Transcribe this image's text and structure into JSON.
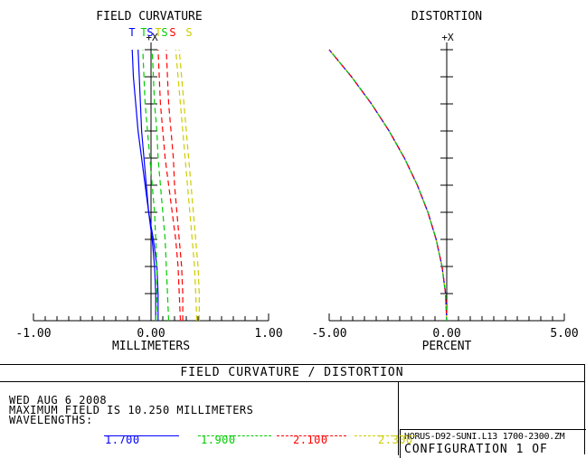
{
  "colors": {
    "blue": "#0000ff",
    "green": "#00cc00",
    "red": "#ff0000",
    "yellow": "#cccc00",
    "black": "#000000"
  },
  "chart_data": [
    {
      "type": "line",
      "title": "FIELD CURVATURE",
      "xlabel": "MILLIMETERS",
      "xlim": [
        -1.0,
        1.0
      ],
      "xticks": [
        "-1.00",
        "0.00",
        "1.00"
      ],
      "ylim": [
        0,
        1
      ],
      "y_axis_label": "+X",
      "legend": [
        "T",
        "T",
        "S",
        "T",
        "S",
        "S",
        "S"
      ],
      "y": [
        0,
        0.1,
        0.2,
        0.3,
        0.4,
        0.5,
        0.6,
        0.7,
        0.8,
        0.9,
        1.0
      ],
      "series": [
        {
          "name": "T",
          "color": "blue",
          "dash": "solid",
          "x": [
            0.04,
            0.04,
            0.03,
            0.01,
            -0.02,
            -0.05,
            -0.08,
            -0.11,
            -0.13,
            -0.15,
            -0.16
          ]
        },
        {
          "name": "S",
          "color": "blue",
          "dash": "solid",
          "x": [
            0.06,
            0.06,
            0.05,
            0.02,
            -0.02,
            -0.04,
            -0.06,
            -0.08,
            -0.09,
            -0.1,
            -0.11
          ]
        },
        {
          "name": "T",
          "color": "green",
          "dash": "dashed",
          "x": [
            0.04,
            0.05,
            0.05,
            0.04,
            0.03,
            0.01,
            -0.01,
            -0.03,
            -0.05,
            -0.06,
            -0.07
          ]
        },
        {
          "name": "S",
          "color": "green",
          "dash": "dashed",
          "x": [
            0.15,
            0.14,
            0.13,
            0.12,
            0.1,
            0.08,
            0.06,
            0.05,
            0.03,
            0.02,
            0.01
          ]
        },
        {
          "name": "T",
          "color": "red",
          "dash": "dashed",
          "x": [
            0.25,
            0.24,
            0.23,
            0.21,
            0.18,
            0.15,
            0.12,
            0.1,
            0.08,
            0.07,
            0.06
          ]
        },
        {
          "name": "S",
          "color": "red",
          "dash": "dashed",
          "x": [
            0.27,
            0.27,
            0.26,
            0.24,
            0.22,
            0.2,
            0.19,
            0.17,
            0.15,
            0.14,
            0.13
          ]
        },
        {
          "name": "T",
          "color": "yellow",
          "dash": "dashed",
          "x": [
            0.39,
            0.38,
            0.37,
            0.35,
            0.33,
            0.31,
            0.29,
            0.27,
            0.25,
            0.23,
            0.21
          ]
        },
        {
          "name": "S",
          "color": "yellow",
          "dash": "dashed",
          "x": [
            0.41,
            0.41,
            0.4,
            0.38,
            0.36,
            0.34,
            0.32,
            0.3,
            0.28,
            0.26,
            0.24
          ]
        }
      ]
    },
    {
      "type": "line",
      "title": "DISTORTION",
      "xlabel": "PERCENT",
      "xlim": [
        -5.0,
        5.0
      ],
      "xticks": [
        "-5.00",
        "0.00",
        "5.00"
      ],
      "ylim": [
        0,
        1
      ],
      "y_axis_label": "+X",
      "y": [
        0,
        0.1,
        0.2,
        0.3,
        0.4,
        0.5,
        0.6,
        0.7,
        0.8,
        0.9,
        1.0
      ],
      "series": [
        {
          "color": "multi",
          "x": [
            0.0,
            -0.05,
            -0.2,
            -0.45,
            -0.8,
            -1.25,
            -1.8,
            -2.45,
            -3.2,
            -4.05,
            -5.0
          ]
        }
      ]
    }
  ],
  "footer": {
    "title": "FIELD CURVATURE / DISTORTION",
    "date": "WED AUG 6 2008",
    "max_field": "MAXIMUM FIELD IS 10.250 MILLIMETERS",
    "wavelengths_label": "WAVELENGTHS:",
    "wavelengths": [
      {
        "value": "1.700",
        "color": "blue"
      },
      {
        "value": "1.900",
        "color": "green"
      },
      {
        "value": "2.100",
        "color": "red"
      },
      {
        "value": "2.300",
        "color": "yellow"
      }
    ],
    "file_name": "HORUS-D92-SUNI.L13 1700-2300.ZM",
    "configuration": "CONFIGURATION 1 OF"
  }
}
